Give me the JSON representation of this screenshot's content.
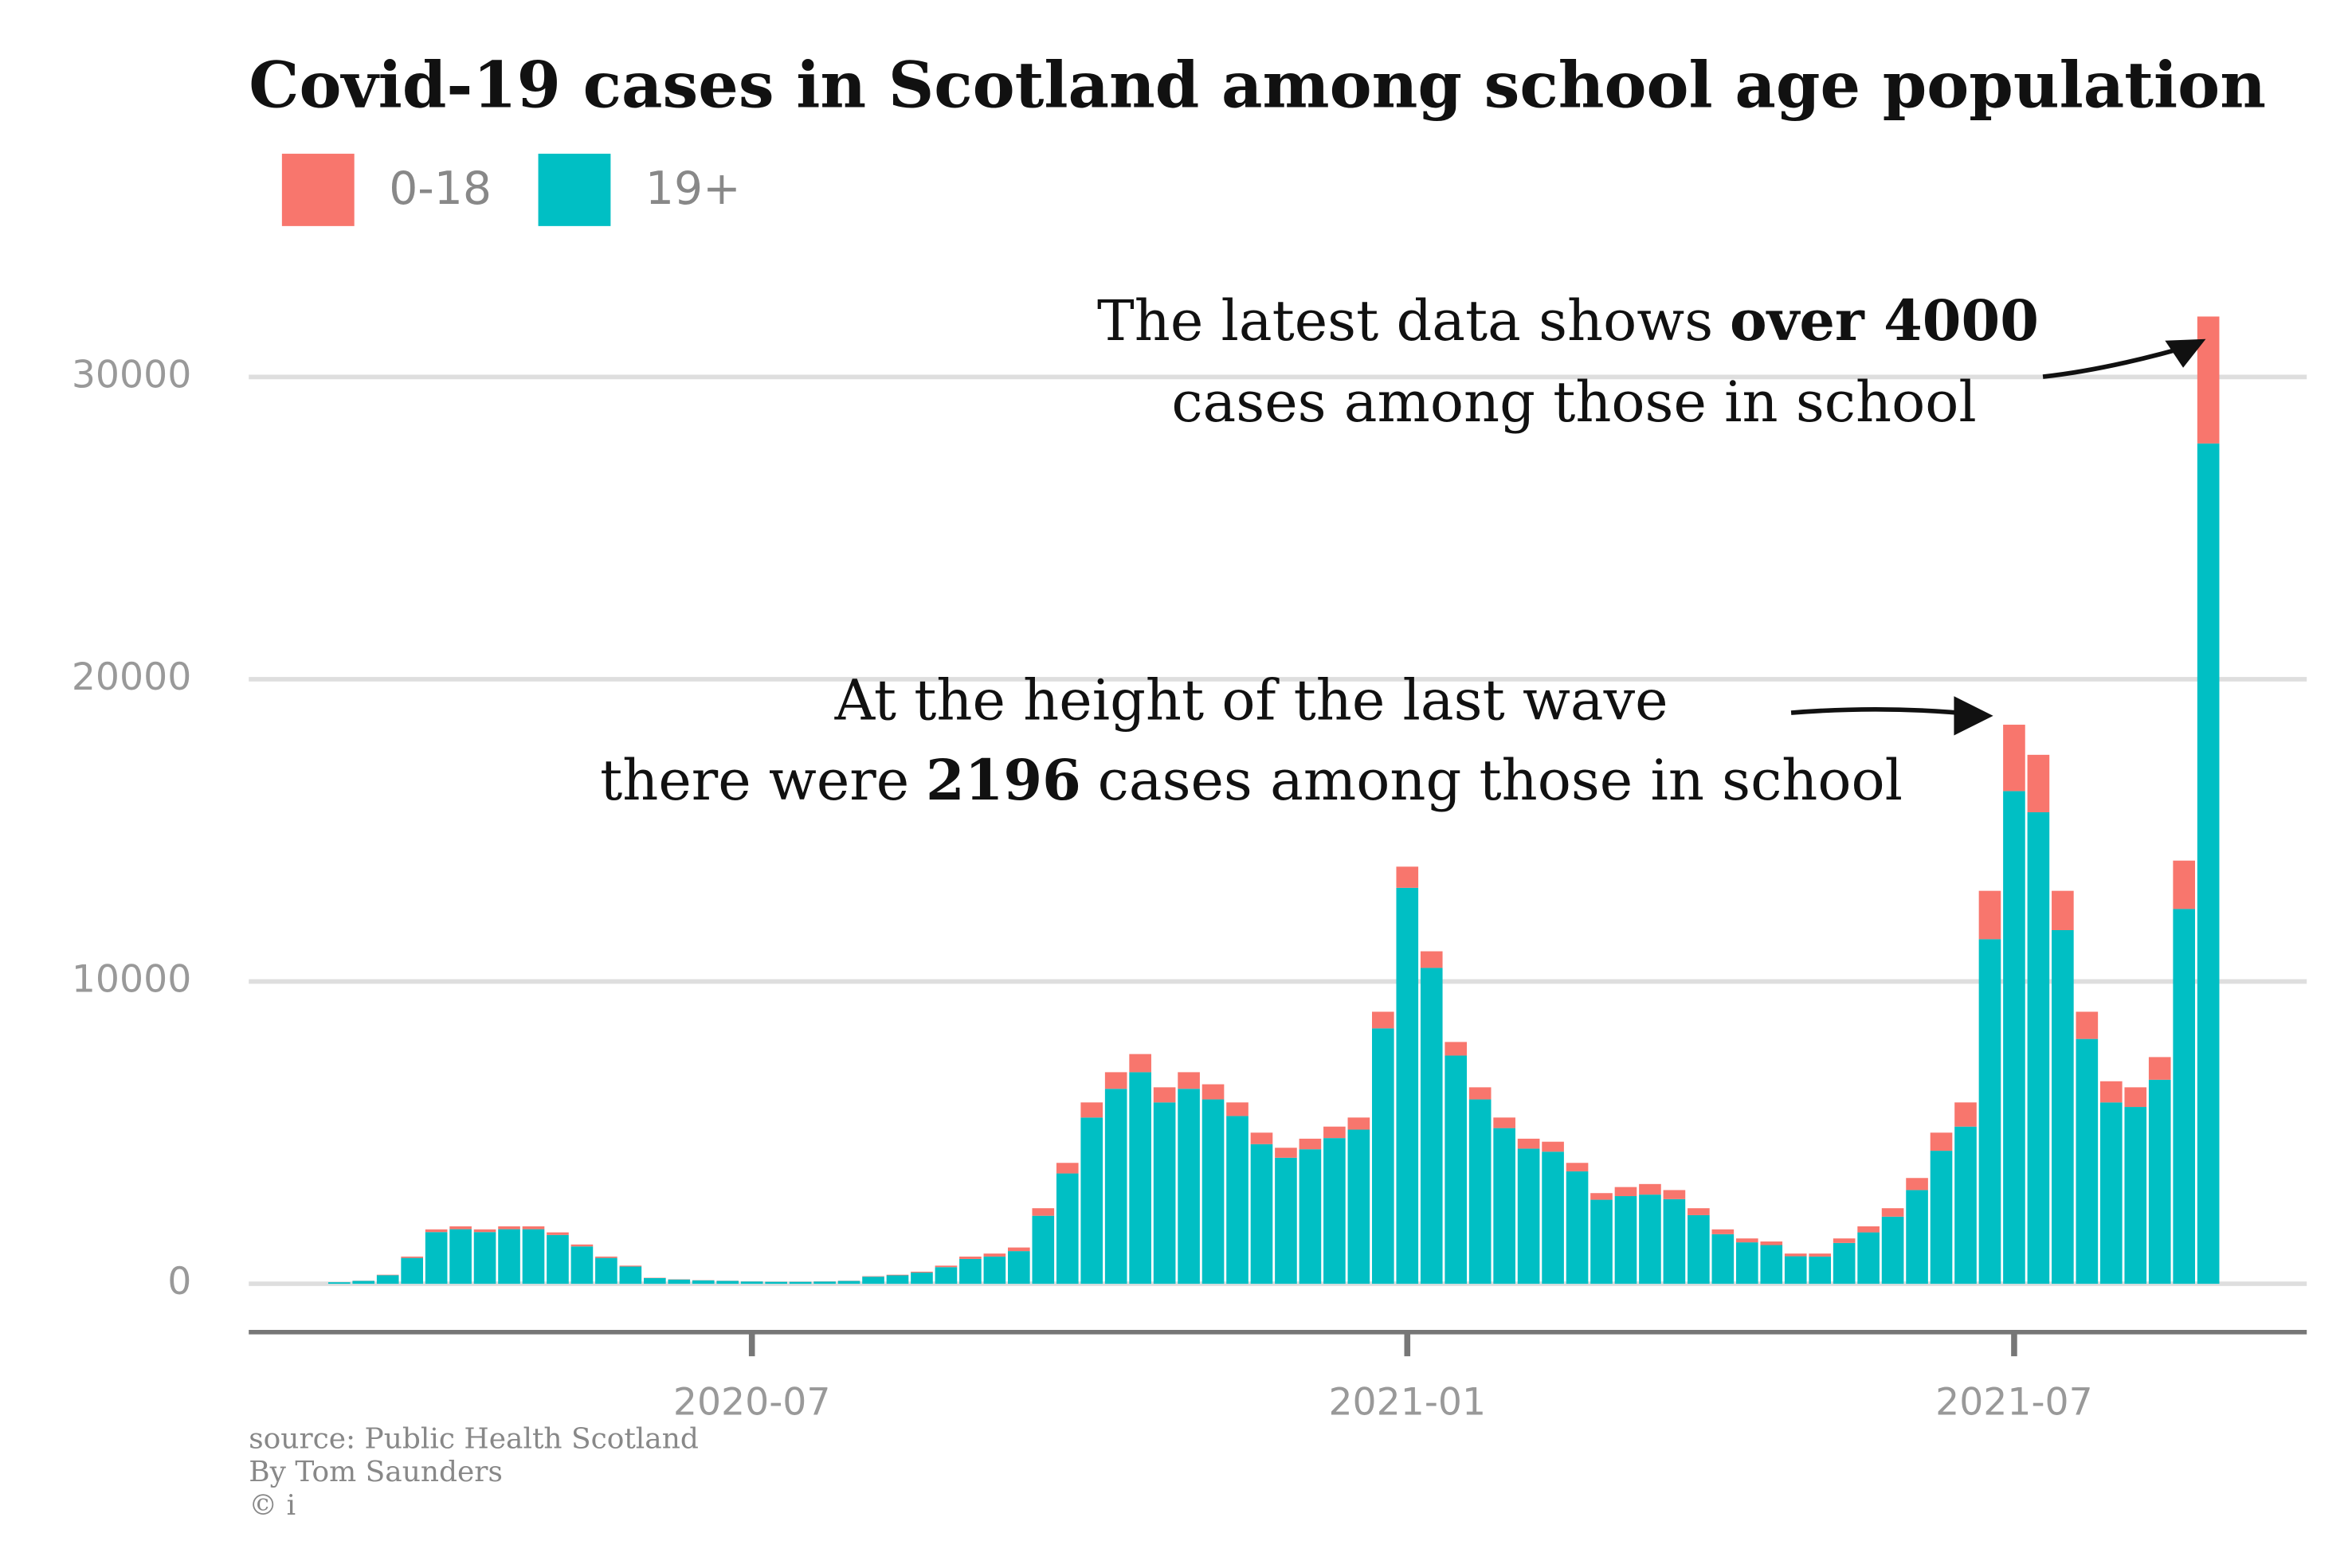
{
  "chart_data": {
    "type": "stacked-bar",
    "title": "Covid-19 cases in Scotland among school age population",
    "categories": [
      null,
      null,
      null,
      null,
      null,
      null,
      null,
      null,
      null,
      null,
      null,
      null,
      null,
      null,
      null,
      null,
      null,
      "2020-07",
      null,
      null,
      null,
      null,
      null,
      null,
      null,
      null,
      null,
      null,
      null,
      null,
      null,
      null,
      null,
      null,
      null,
      null,
      null,
      null,
      null,
      null,
      null,
      null,
      null,
      null,
      "2021-01",
      null,
      null,
      null,
      null,
      null,
      null,
      null,
      null,
      null,
      null,
      null,
      null,
      null,
      null,
      null,
      null,
      null,
      null,
      null,
      null,
      null,
      null,
      null,
      null,
      "2021-07",
      null,
      null,
      null,
      null,
      null,
      null,
      null,
      null
    ],
    "series": [
      {
        "name": "19+",
        "color": "#00bfc4",
        "values": [
          50,
          95,
          285,
          855,
          1710,
          1805,
          1710,
          1805,
          1805,
          1615,
          1235,
          855,
          570,
          190,
          142,
          114,
          95,
          76,
          66,
          66,
          75,
          94,
          235,
          280,
          370,
          550,
          820,
          900,
          1080,
          2250,
          3650,
          5500,
          6450,
          7000,
          6000,
          6450,
          6100,
          5550,
          4620,
          4170,
          4450,
          4820,
          5100,
          8450,
          13100,
          10450,
          7550,
          6100,
          5150,
          4470,
          4370,
          3720,
          2780,
          2900,
          2950,
          2800,
          2270,
          1640,
          1370,
          1280,
          910,
          900,
          1350,
          1700,
          2220,
          3100,
          4400,
          5200,
          11400,
          16300,
          15600,
          11700,
          8100,
          6000,
          5850,
          6750,
          12400,
          27800
        ]
      },
      {
        "name": "0-18",
        "color": "#f8766d",
        "values": [
          0,
          5,
          15,
          45,
          90,
          95,
          90,
          95,
          95,
          85,
          65,
          45,
          30,
          10,
          8,
          6,
          5,
          4,
          4,
          4,
          5,
          6,
          15,
          20,
          30,
          50,
          80,
          100,
          120,
          250,
          350,
          500,
          550,
          600,
          500,
          550,
          500,
          450,
          380,
          330,
          350,
          380,
          400,
          550,
          700,
          550,
          450,
          400,
          350,
          330,
          330,
          280,
          220,
          300,
          350,
          300,
          230,
          160,
          130,
          120,
          90,
          100,
          150,
          200,
          280,
          400,
          600,
          800,
          1600,
          2196,
          1900,
          1300,
          900,
          700,
          650,
          750,
          1600,
          4200
        ]
      }
    ],
    "ylim": [
      -1600,
      32500
    ],
    "yticks": [
      0,
      10000,
      20000,
      30000
    ],
    "grid": true,
    "legend": "top-left",
    "annotations": [
      {
        "lines": [
          {
            "text": "The latest data shows",
            "bold": "over 4000"
          },
          {
            "text": "cases among those in school"
          }
        ]
      },
      {
        "lines": [
          {
            "text": "At the height of the last wave"
          },
          {
            "text": "there were",
            "bold": "2196",
            "after": "cases among those in school"
          }
        ]
      }
    ],
    "source": [
      "source: Public Health Scotland",
      "By Tom Saunders",
      "© i"
    ]
  }
}
